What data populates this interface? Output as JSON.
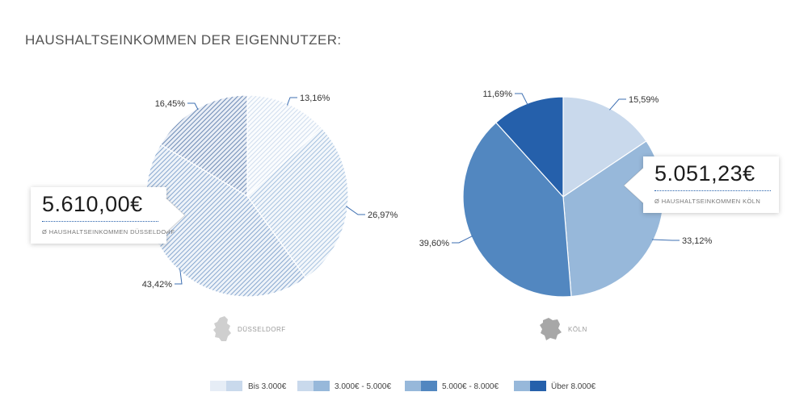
{
  "page": {
    "title": "HAUSHALTSEINKOMMEN DER EIGENNUTZER:"
  },
  "chart_data": [
    {
      "type": "pie",
      "city": "DÜSSELDORF",
      "average_value": "5.610,00€",
      "average_caption": "Ø HAUSHALTSEINKOMMEN DÜSSELDORF",
      "slices": [
        {
          "category": "Bis 3.000€",
          "value": 13.16,
          "label": "13,16%"
        },
        {
          "category": "3.000€ - 5.000€",
          "value": 26.97,
          "label": "26,97%"
        },
        {
          "category": "5.000€ - 8.000€",
          "value": 43.42,
          "label": "43,42%"
        },
        {
          "category": "Über 8.000€",
          "value": 16.45,
          "label": "16,45%"
        }
      ],
      "style": "hatched"
    },
    {
      "type": "pie",
      "city": "KÖLN",
      "average_value": "5.051,23€",
      "average_caption": "Ø HAUSHALTSEINKOMMEN KÖLN",
      "slices": [
        {
          "category": "Bis 3.000€",
          "value": 15.59,
          "label": "15,59%"
        },
        {
          "category": "3.000€ - 5.000€",
          "value": 33.12,
          "label": "33,12%"
        },
        {
          "category": "5.000€ - 8.000€",
          "value": 39.6,
          "label": "39,60%"
        },
        {
          "category": "Über 8.000€",
          "value": 11.69,
          "label": "11,69%"
        }
      ],
      "style": "solid"
    }
  ],
  "legend": [
    {
      "label": "Bis 3.000€",
      "color_light": "#e6edf6",
      "color_dark": "#c9d9ec"
    },
    {
      "label": "3.000€ - 5.000€",
      "color_light": "#c9d9ec",
      "color_dark": "#97b8da"
    },
    {
      "label": "5.000€ - 8.000€",
      "color_light": "#97b8da",
      "color_dark": "#5287c0"
    },
    {
      "label": "Über 8.000€",
      "color_light": "#97b8da",
      "color_dark": "#2560ab"
    }
  ],
  "colors": {
    "slice_fills": [
      "#c9d9ec",
      "#97b8da",
      "#5287c0",
      "#2560ab"
    ],
    "hatch_lines": [
      "#c2d3e8",
      "#8db0d6",
      "#6f95c5",
      "#5f7fae"
    ],
    "leader_line": "#3d6fb2",
    "accent": "#2560ab"
  }
}
